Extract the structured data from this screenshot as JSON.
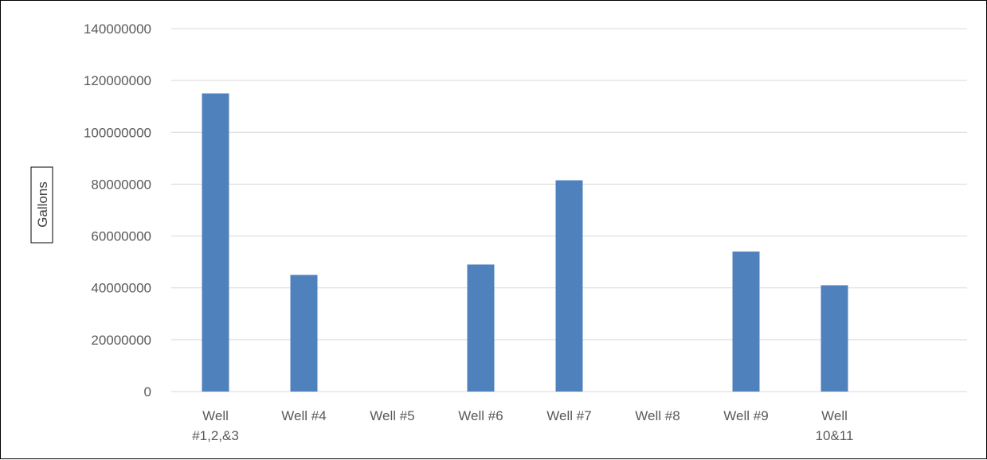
{
  "chart_data": {
    "type": "bar",
    "title": "",
    "xlabel": "",
    "ylabel": "Gallons",
    "ylim": [
      0,
      140000000
    ],
    "yticks": [
      0,
      20000000,
      40000000,
      60000000,
      80000000,
      100000000,
      120000000,
      140000000
    ],
    "grid": true,
    "legend": "none",
    "bar_color": "#4f81bd",
    "categories": [
      [
        "Well",
        "#1,2,&3"
      ],
      [
        "Well #4"
      ],
      [
        "Well #5"
      ],
      [
        "Well #6"
      ],
      [
        "Well #7"
      ],
      [
        "Well #8"
      ],
      [
        "Well #9"
      ],
      [
        "Well",
        "10&11"
      ],
      [
        ""
      ]
    ],
    "values": [
      115000000,
      45000000,
      0,
      49000000,
      81500000,
      0,
      54000000,
      41000000,
      0
    ]
  }
}
